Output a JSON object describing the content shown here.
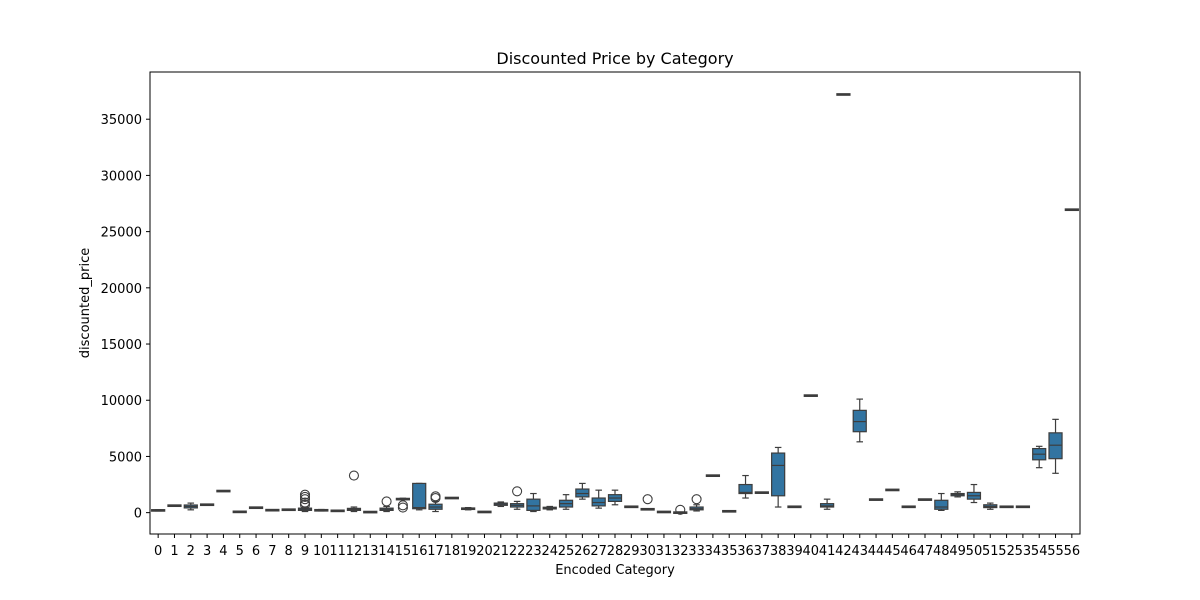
{
  "chart_data": {
    "type": "box",
    "title": "Discounted Price by Category",
    "xlabel": "Encoded Category",
    "ylabel": "discounted_price",
    "ylim": [
      -1900,
      39200
    ],
    "yticks": [
      0,
      5000,
      10000,
      15000,
      20000,
      25000,
      30000,
      35000
    ],
    "categories": [
      "0",
      "1",
      "2",
      "3",
      "4",
      "5",
      "6",
      "7",
      "8",
      "9",
      "10",
      "11",
      "12",
      "13",
      "14",
      "15",
      "16",
      "17",
      "18",
      "19",
      "20",
      "21",
      "22",
      "23",
      "24",
      "25",
      "26",
      "27",
      "28",
      "29",
      "30",
      "31",
      "32",
      "33",
      "34",
      "35",
      "36",
      "37",
      "38",
      "39",
      "40",
      "41",
      "42",
      "43",
      "44",
      "45",
      "46",
      "47",
      "48",
      "49",
      "50",
      "51",
      "52",
      "53",
      "54",
      "55",
      "56"
    ],
    "box_color": "#3274a1",
    "grid": false,
    "series": [
      {
        "min": 150,
        "q1": 170,
        "median": 200,
        "q3": 230,
        "max": 260,
        "outliers": []
      },
      {
        "min": 600,
        "q1": 610,
        "median": 620,
        "q3": 630,
        "max": 640,
        "outliers": []
      },
      {
        "min": 250,
        "q1": 420,
        "median": 550,
        "q3": 680,
        "max": 850,
        "outliers": []
      },
      {
        "min": 650,
        "q1": 680,
        "median": 700,
        "q3": 730,
        "max": 760,
        "outliers": []
      },
      {
        "min": 1900,
        "q1": 1910,
        "median": 1920,
        "q3": 1930,
        "max": 1940,
        "outliers": []
      },
      {
        "min": 50,
        "q1": 60,
        "median": 70,
        "q3": 80,
        "max": 90,
        "outliers": []
      },
      {
        "min": 420,
        "q1": 430,
        "median": 440,
        "q3": 450,
        "max": 460,
        "outliers": []
      },
      {
        "min": 200,
        "q1": 210,
        "median": 220,
        "q3": 230,
        "max": 240,
        "outliers": []
      },
      {
        "min": 240,
        "q1": 250,
        "median": 260,
        "q3": 270,
        "max": 280,
        "outliers": []
      },
      {
        "min": 100,
        "q1": 200,
        "median": 300,
        "q3": 400,
        "max": 500,
        "outliers": [
          700,
          900,
          1200,
          1400,
          1600
        ]
      },
      {
        "min": 150,
        "q1": 180,
        "median": 200,
        "q3": 240,
        "max": 280,
        "outliers": []
      },
      {
        "min": 140,
        "q1": 150,
        "median": 160,
        "q3": 170,
        "max": 180,
        "outliers": []
      },
      {
        "min": 100,
        "q1": 200,
        "median": 280,
        "q3": 380,
        "max": 500,
        "outliers": [
          3300
        ]
      },
      {
        "min": 30,
        "q1": 40,
        "median": 50,
        "q3": 60,
        "max": 70,
        "outliers": []
      },
      {
        "min": 100,
        "q1": 200,
        "median": 300,
        "q3": 400,
        "max": 550,
        "outliers": [
          1000
        ]
      },
      {
        "min": 1150,
        "q1": 1180,
        "median": 1200,
        "q3": 1230,
        "max": 1280,
        "outliers": [
          450,
          650
        ]
      },
      {
        "min": 250,
        "q1": 350,
        "median": 450,
        "q3": 2600,
        "max": 2600,
        "outliers": []
      },
      {
        "min": 100,
        "q1": 300,
        "median": 500,
        "q3": 750,
        "max": 1000,
        "outliers": [
          1300,
          1450
        ]
      },
      {
        "min": 1270,
        "q1": 1290,
        "median": 1300,
        "q3": 1310,
        "max": 1330,
        "outliers": []
      },
      {
        "min": 250,
        "q1": 300,
        "median": 350,
        "q3": 400,
        "max": 450,
        "outliers": []
      },
      {
        "min": 40,
        "q1": 50,
        "median": 60,
        "q3": 70,
        "max": 80,
        "outliers": []
      },
      {
        "min": 550,
        "q1": 650,
        "median": 750,
        "q3": 850,
        "max": 950,
        "outliers": []
      },
      {
        "min": 300,
        "q1": 500,
        "median": 650,
        "q3": 800,
        "max": 1000,
        "outliers": [
          1900
        ]
      },
      {
        "min": 100,
        "q1": 200,
        "median": 600,
        "q3": 1200,
        "max": 1700,
        "outliers": []
      },
      {
        "min": 250,
        "q1": 330,
        "median": 400,
        "q3": 480,
        "max": 550,
        "outliers": []
      },
      {
        "min": 300,
        "q1": 500,
        "median": 800,
        "q3": 1100,
        "max": 1600,
        "outliers": []
      },
      {
        "min": 1200,
        "q1": 1400,
        "median": 1700,
        "q3": 2100,
        "max": 2600,
        "outliers": []
      },
      {
        "min": 400,
        "q1": 600,
        "median": 900,
        "q3": 1300,
        "max": 2000,
        "outliers": []
      },
      {
        "min": 700,
        "q1": 1000,
        "median": 1300,
        "q3": 1600,
        "max": 2000,
        "outliers": []
      },
      {
        "min": 480,
        "q1": 500,
        "median": 520,
        "q3": 540,
        "max": 560,
        "outliers": []
      },
      {
        "min": 270,
        "q1": 290,
        "median": 300,
        "q3": 310,
        "max": 330,
        "outliers": [
          1200
        ]
      },
      {
        "min": 40,
        "q1": 50,
        "median": 60,
        "q3": 70,
        "max": 80,
        "outliers": []
      },
      {
        "min": -50,
        "q1": -20,
        "median": 0,
        "q3": 20,
        "max": 60,
        "outliers": [
          250
        ]
      },
      {
        "min": 150,
        "q1": 250,
        "median": 350,
        "q3": 500,
        "max": 700,
        "outliers": [
          1200
        ]
      },
      {
        "min": 3250,
        "q1": 3270,
        "median": 3290,
        "q3": 3310,
        "max": 3330,
        "outliers": []
      },
      {
        "min": 100,
        "q1": 110,
        "median": 120,
        "q3": 130,
        "max": 140,
        "outliers": []
      },
      {
        "min": 1300,
        "q1": 1700,
        "median": 1800,
        "q3": 2500,
        "max": 3300,
        "outliers": []
      },
      {
        "min": 1750,
        "q1": 1770,
        "median": 1780,
        "q3": 1790,
        "max": 1800,
        "outliers": []
      },
      {
        "min": 500,
        "q1": 1500,
        "median": 4200,
        "q3": 5300,
        "max": 5800,
        "outliers": []
      },
      {
        "min": 500,
        "q1": 510,
        "median": 520,
        "q3": 530,
        "max": 540,
        "outliers": []
      },
      {
        "min": 10380,
        "q1": 10400,
        "median": 10410,
        "q3": 10420,
        "max": 10440,
        "outliers": []
      },
      {
        "min": 300,
        "q1": 500,
        "median": 600,
        "q3": 800,
        "max": 1200,
        "outliers": []
      },
      {
        "min": 37170,
        "q1": 37190,
        "median": 37200,
        "q3": 37210,
        "max": 37230,
        "outliers": []
      },
      {
        "min": 6300,
        "q1": 7200,
        "median": 8100,
        "q3": 9100,
        "max": 10100,
        "outliers": []
      },
      {
        "min": 1130,
        "q1": 1150,
        "median": 1160,
        "q3": 1170,
        "max": 1190,
        "outliers": []
      },
      {
        "min": 2000,
        "q1": 2010,
        "median": 2020,
        "q3": 2030,
        "max": 2040,
        "outliers": []
      },
      {
        "min": 500,
        "q1": 510,
        "median": 520,
        "q3": 530,
        "max": 540,
        "outliers": []
      },
      {
        "min": 1130,
        "q1": 1150,
        "median": 1160,
        "q3": 1170,
        "max": 1190,
        "outliers": []
      },
      {
        "min": 200,
        "q1": 300,
        "median": 500,
        "q3": 1100,
        "max": 1700,
        "outliers": []
      },
      {
        "min": 1400,
        "q1": 1500,
        "median": 1600,
        "q3": 1700,
        "max": 1850,
        "outliers": []
      },
      {
        "min": 900,
        "q1": 1200,
        "median": 1500,
        "q3": 1800,
        "max": 2500,
        "outliers": []
      },
      {
        "min": 300,
        "q1": 450,
        "median": 550,
        "q3": 700,
        "max": 850,
        "outliers": []
      },
      {
        "min": 480,
        "q1": 500,
        "median": 520,
        "q3": 540,
        "max": 560,
        "outliers": []
      },
      {
        "min": 480,
        "q1": 500,
        "median": 520,
        "q3": 540,
        "max": 560,
        "outliers": []
      },
      {
        "min": 4000,
        "q1": 4700,
        "median": 5200,
        "q3": 5700,
        "max": 5900,
        "outliers": []
      },
      {
        "min": 3500,
        "q1": 4800,
        "median": 6000,
        "q3": 7100,
        "max": 8300,
        "outliers": []
      },
      {
        "min": 26900,
        "q1": 26930,
        "median": 26950,
        "q3": 26970,
        "max": 27000,
        "outliers": []
      }
    ]
  }
}
